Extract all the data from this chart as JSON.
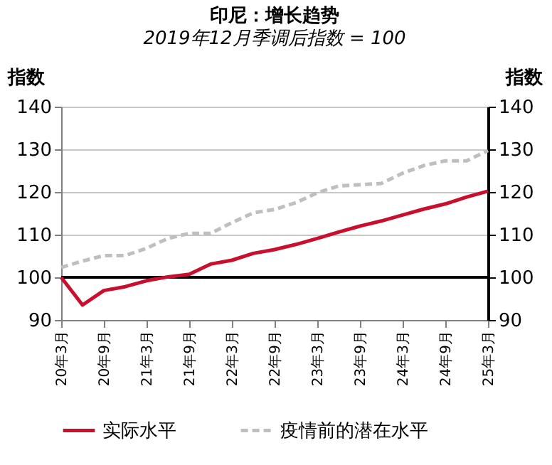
{
  "chart_data": {
    "type": "line",
    "title": "印尼：增长趋势",
    "subtitle": "2019年12月季调后指数 = 100",
    "ylabel": "指数",
    "y2label": "指数",
    "categories": [
      "20年3月",
      null,
      "20年9月",
      null,
      "21年3月",
      null,
      "21年9月",
      null,
      "22年3月",
      null,
      "22年9月",
      null,
      "23年3月",
      null,
      "23年9月",
      null,
      "24年3月",
      null,
      "24年9月",
      null,
      "25年3月"
    ],
    "series": [
      {
        "name": "实际水平",
        "color": "#c8102e",
        "line_style": "solid",
        "values": [
          100,
          93.5,
          96.9,
          97.8,
          99.2,
          100.1,
          100.7,
          103.1,
          104.0,
          105.6,
          106.5,
          107.7,
          109.1,
          110.6,
          112.0,
          113.2,
          114.6,
          116.0,
          117.2,
          118.8,
          120.2
        ]
      },
      {
        "name": "疫情前的潜在水平",
        "color": "#bfbfbf",
        "line_style": "dashed",
        "values": [
          102.3,
          103.8,
          105.1,
          105.1,
          106.8,
          109.1,
          110.3,
          110.3,
          112.8,
          115.1,
          115.9,
          117.5,
          119.8,
          121.4,
          121.7,
          122.0,
          124.4,
          126.2,
          127.3,
          127.3,
          129.7
        ]
      }
    ],
    "ylim": [
      90,
      140
    ],
    "yticks": [
      90,
      100,
      110,
      120,
      130,
      140
    ],
    "y2lim": [
      90,
      140
    ],
    "y2ticks": [
      90,
      100,
      110,
      120,
      130,
      140
    ],
    "ref_lines": [
      {
        "axis": "y",
        "value": 100,
        "color": "#000000"
      }
    ],
    "grid": "y",
    "legend": "bottom",
    "marker": "none"
  }
}
